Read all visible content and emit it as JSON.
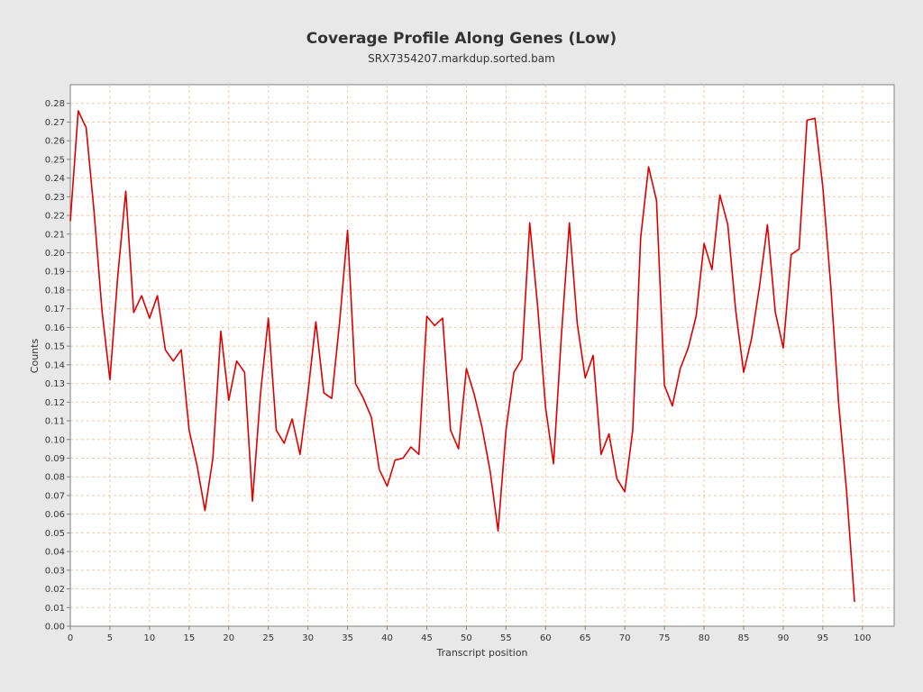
{
  "chart_data": {
    "type": "line",
    "title": "Coverage Profile Along Genes (Low)",
    "subtitle": "SRX7354207.markdup.sorted.bam",
    "xlabel": "Transcript position",
    "ylabel": "Counts",
    "xlim": [
      0,
      104
    ],
    "ylim": [
      0,
      0.29
    ],
    "x_ticks": [
      0,
      5,
      10,
      15,
      20,
      25,
      30,
      35,
      40,
      45,
      50,
      55,
      60,
      65,
      70,
      75,
      80,
      85,
      90,
      95,
      100
    ],
    "y_ticks": [
      0.0,
      0.01,
      0.02,
      0.03,
      0.04,
      0.05,
      0.06,
      0.07,
      0.08,
      0.09,
      0.1,
      0.11,
      0.12,
      0.13,
      0.14,
      0.15,
      0.16,
      0.17,
      0.18,
      0.19,
      0.2,
      0.21,
      0.22,
      0.23,
      0.24,
      0.25,
      0.26,
      0.27,
      0.28
    ],
    "grid": true,
    "series": [
      {
        "color": "#dd0000",
        "x": [
          0,
          1,
          2,
          3,
          4,
          5,
          6,
          7,
          8,
          9,
          10,
          11,
          12,
          13,
          14,
          15,
          16,
          17,
          18,
          19,
          20,
          21,
          22,
          23,
          24,
          25,
          26,
          27,
          28,
          29,
          30,
          31,
          32,
          33,
          34,
          35,
          36,
          37,
          38,
          39,
          40,
          41,
          42,
          43,
          44,
          45,
          46,
          47,
          48,
          49,
          50,
          51,
          52,
          53,
          54,
          55,
          56,
          57,
          58,
          59,
          60,
          61,
          62,
          63,
          64,
          65,
          66,
          67,
          68,
          69,
          70,
          71,
          72,
          73,
          74,
          75,
          76,
          77,
          78,
          79,
          80,
          81,
          82,
          83,
          84,
          85,
          86,
          87,
          88,
          89,
          90,
          91,
          92,
          93,
          94,
          95,
          96,
          97,
          98,
          99
        ],
        "y": [
          0.217,
          0.276,
          0.267,
          0.222,
          0.169,
          0.132,
          0.188,
          0.233,
          0.168,
          0.177,
          0.165,
          0.177,
          0.148,
          0.142,
          0.148,
          0.105,
          0.086,
          0.062,
          0.09,
          0.158,
          0.121,
          0.142,
          0.136,
          0.067,
          0.124,
          0.165,
          0.105,
          0.098,
          0.111,
          0.092,
          0.125,
          0.163,
          0.125,
          0.122,
          0.163,
          0.212,
          0.13,
          0.122,
          0.112,
          0.084,
          0.075,
          0.089,
          0.09,
          0.096,
          0.092,
          0.166,
          0.161,
          0.165,
          0.105,
          0.095,
          0.138,
          0.124,
          0.106,
          0.083,
          0.051,
          0.105,
          0.136,
          0.143,
          0.216,
          0.171,
          0.117,
          0.087,
          0.156,
          0.216,
          0.162,
          0.133,
          0.145,
          0.092,
          0.103,
          0.079,
          0.072,
          0.105,
          0.208,
          0.246,
          0.228,
          0.129,
          0.118,
          0.138,
          0.149,
          0.166,
          0.205,
          0.191,
          0.231,
          0.215,
          0.169,
          0.136,
          0.154,
          0.182,
          0.215,
          0.168,
          0.149,
          0.199,
          0.202,
          0.271,
          0.272,
          0.235,
          0.182,
          0.119,
          0.072,
          0.013
        ]
      }
    ]
  }
}
